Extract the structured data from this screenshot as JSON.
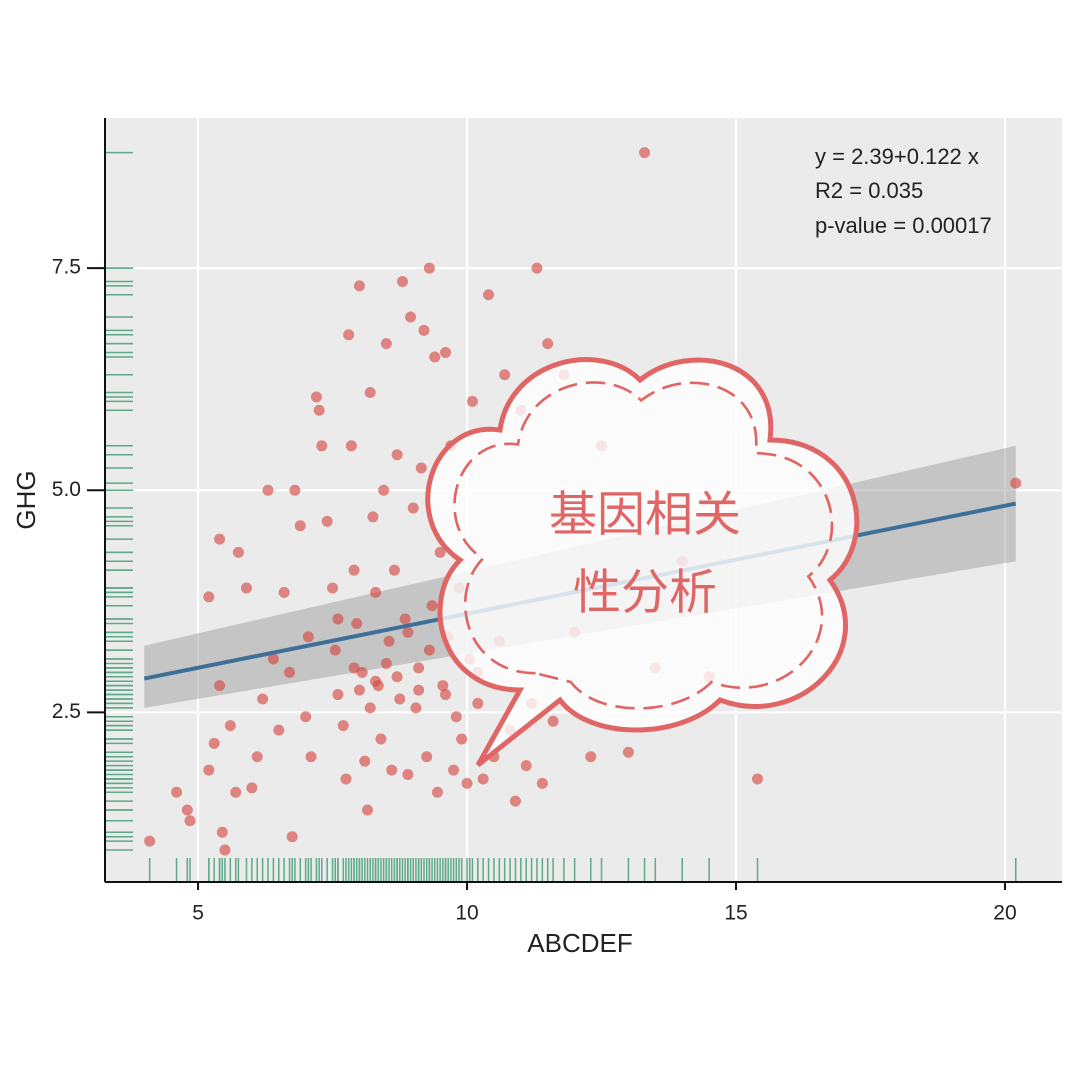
{
  "chart_data": {
    "type": "scatter",
    "x_label": "ABCDEF",
    "y_label": "GHG",
    "annotations": [
      "y = 2.39+0.122 x",
      "R2 = 0.035",
      "p-value = 0.00017"
    ],
    "xlim": [
      3.27,
      21.06
    ],
    "ylim": [
      0.59,
      9.19
    ],
    "xticks": [
      5,
      10,
      15,
      20
    ],
    "yticks": [
      2.5,
      {
        "value": 5,
        "label": "5.0"
      },
      7.5
    ],
    "grid": true,
    "color": "#d43f3a",
    "rug_color": "#5fa88a",
    "x": [
      4.1,
      4.6,
      4.8,
      4.85,
      5.2,
      5.3,
      5.45,
      5.5,
      5.6,
      5.7,
      5.4,
      5.2,
      5.4,
      5.75,
      5.9,
      6.0,
      6.1,
      6.2,
      6.3,
      6.4,
      6.5,
      6.6,
      6.7,
      6.75,
      6.8,
      6.9,
      7.0,
      7.05,
      7.1,
      7.2,
      7.25,
      7.3,
      7.4,
      7.5,
      7.55,
      7.6,
      7.7,
      7.75,
      7.8,
      7.85,
      7.9,
      7.95,
      8.0,
      8.05,
      8.1,
      8.15,
      8.2,
      8.25,
      8.3,
      8.35,
      8.4,
      8.45,
      8.5,
      8.55,
      8.6,
      8.65,
      8.7,
      8.75,
      8.8,
      8.85,
      8.9,
      8.95,
      9.0,
      9.05,
      9.1,
      9.15,
      9.2,
      9.25,
      9.3,
      9.35,
      9.4,
      9.45,
      9.5,
      9.55,
      9.6,
      9.65,
      9.7,
      9.75,
      9.8,
      9.85,
      9.9,
      10.0,
      10.05,
      10.1,
      10.2,
      10.3,
      10.4,
      10.5,
      10.6,
      10.7,
      10.8,
      10.9,
      11.0,
      11.1,
      11.2,
      11.3,
      11.4,
      11.5,
      11.6,
      11.8,
      12.0,
      12.3,
      12.5,
      13.0,
      13.3,
      13.5,
      14.0,
      14.5,
      15.4,
      20.2,
      8.3,
      8.5,
      8.7,
      9.1,
      9.3,
      7.9,
      8.2,
      8.9,
      9.6,
      10.2,
      7.6,
      8.0
    ],
    "values": [
      1.05,
      1.6,
      1.4,
      1.28,
      1.85,
      2.15,
      1.15,
      0.95,
      2.35,
      1.6,
      2.8,
      3.8,
      4.45,
      4.3,
      3.9,
      1.65,
      2.0,
      2.65,
      5.0,
      3.1,
      2.3,
      3.85,
      2.95,
      1.1,
      5.0,
      4.6,
      2.45,
      3.35,
      2.0,
      6.05,
      5.9,
      5.5,
      4.65,
      3.9,
      3.2,
      2.7,
      2.35,
      1.75,
      6.75,
      5.5,
      4.1,
      3.5,
      7.3,
      2.95,
      1.95,
      1.4,
      6.1,
      4.7,
      3.85,
      2.8,
      2.2,
      5.0,
      6.65,
      3.3,
      1.85,
      4.1,
      5.4,
      2.65,
      7.35,
      3.55,
      1.8,
      6.95,
      4.8,
      2.55,
      3.0,
      5.25,
      6.8,
      2.0,
      7.5,
      3.7,
      6.5,
      1.6,
      4.3,
      2.8,
      6.55,
      3.35,
      5.5,
      1.85,
      2.45,
      3.9,
      2.2,
      1.7,
      3.1,
      6.0,
      2.6,
      1.75,
      7.2,
      2.0,
      3.3,
      6.3,
      2.3,
      1.5,
      5.9,
      1.9,
      2.6,
      7.5,
      1.7,
      6.65,
      2.4,
      6.3,
      3.4,
      2.0,
      5.5,
      2.05,
      8.8,
      3.0,
      4.2,
      2.9,
      1.75,
      5.08,
      2.85,
      3.05,
      2.9,
      2.75,
      3.2,
      3.0,
      2.55,
      3.4,
      2.7,
      2.95,
      3.55,
      2.75
    ],
    "fit": {
      "color": "#3d6f98",
      "band_color": "#a0a0a0",
      "x": [
        4.0,
        20.2
      ],
      "y": [
        2.88,
        4.85
      ],
      "lower": [
        2.55,
        4.2
      ],
      "upper": [
        3.25,
        5.5
      ]
    }
  },
  "overlay": {
    "lines": [
      "基因相关",
      "性分析"
    ]
  }
}
